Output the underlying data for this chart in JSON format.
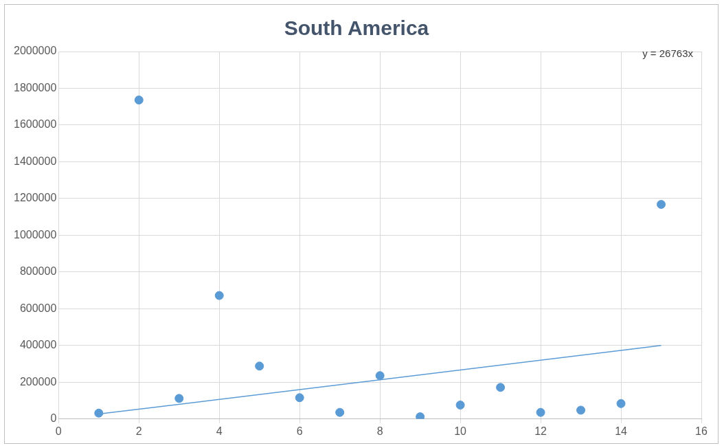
{
  "chart_data": {
    "type": "scatter",
    "title": "South America",
    "series": [
      {
        "type": "scatter",
        "color": "#5b9bd5",
        "marker": "circle",
        "x": [
          1,
          2,
          3,
          4,
          5,
          6,
          7,
          8,
          9,
          10,
          11,
          12,
          13,
          14,
          15
        ],
        "values": [
          32000,
          1736000,
          112000,
          672000,
          288000,
          116000,
          36000,
          236000,
          12000,
          76000,
          172000,
          36000,
          48000,
          84000,
          1168000
        ]
      },
      {
        "type": "line",
        "color": "#5b9bd5",
        "marker": "none",
        "x": [
          1,
          15
        ],
        "values": [
          27000,
          400000
        ]
      }
    ],
    "xlim": [
      0,
      16
    ],
    "xticks": [
      0,
      2,
      4,
      6,
      8,
      10,
      12,
      14,
      16
    ],
    "ylim": [
      0,
      2000000
    ],
    "yticks": [
      0,
      200000,
      400000,
      600000,
      800000,
      1000000,
      1200000,
      1400000,
      1600000,
      1800000,
      2000000
    ],
    "grid": true,
    "legend": false,
    "annotations": [
      "y = 26763x"
    ]
  }
}
